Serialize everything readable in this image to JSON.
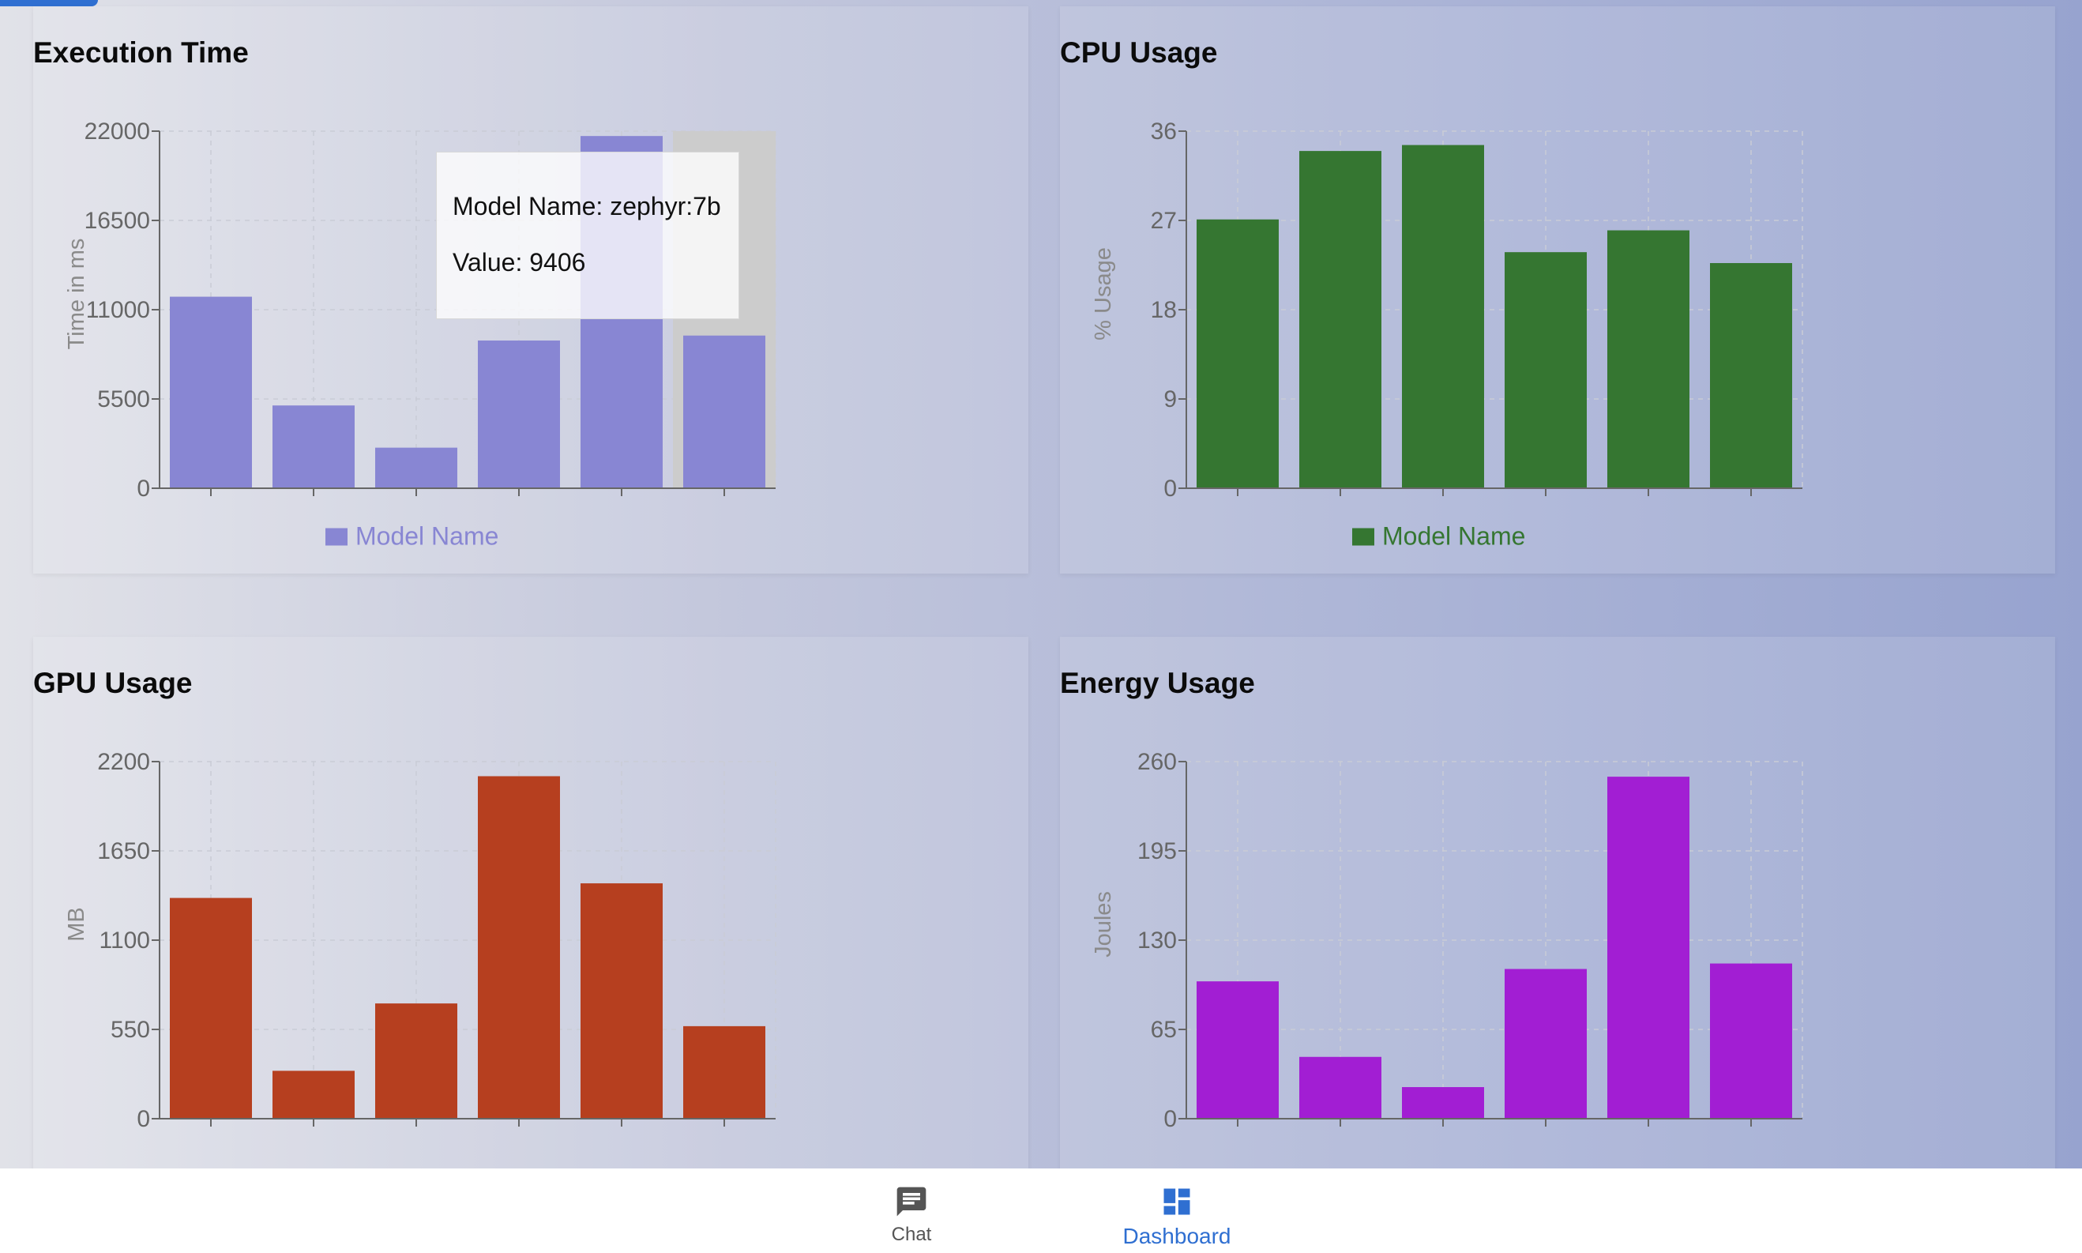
{
  "charts": {
    "execution": {
      "title": "Execution Time",
      "color": "#8886d3",
      "legend": "Model Name",
      "tooltip": {
        "model_line": "Model Name: zephyr:7b",
        "value_line": "Value: 9406"
      }
    },
    "cpu": {
      "title": "CPU Usage",
      "color": "#357631",
      "legend": "Model Name"
    },
    "gpu": {
      "title": "GPU Usage",
      "color": "#b63f1f"
    },
    "energy": {
      "title": "Energy Usage",
      "color": "#a21ed3"
    }
  },
  "chart_data": [
    {
      "type": "bar",
      "title": "Execution Time",
      "xlabel": "",
      "ylabel": "Time in ms",
      "ylim": [
        0,
        22000
      ],
      "yticks": [
        "0",
        "5500",
        "11000",
        "16500",
        "22000"
      ],
      "categories": [
        "",
        "",
        "",
        "",
        "",
        ""
      ],
      "values": [
        11800,
        5100,
        2500,
        9100,
        21700,
        9406
      ],
      "legend": "Model Name",
      "color": "#8886d3",
      "highlight_index": 5
    },
    {
      "type": "bar",
      "title": "CPU Usage",
      "xlabel": "",
      "ylabel": "% Usage",
      "ylim": [
        0,
        36
      ],
      "yticks": [
        "0",
        "9",
        "18",
        "27",
        "36"
      ],
      "categories": [
        "",
        "",
        "",
        "",
        "",
        ""
      ],
      "values": [
        27.1,
        34.0,
        34.6,
        23.8,
        26.0,
        22.7
      ],
      "legend": "Model Name",
      "color": "#357631"
    },
    {
      "type": "bar",
      "title": "GPU Usage",
      "xlabel": "",
      "ylabel": "MB",
      "ylim": [
        0,
        2200
      ],
      "yticks": [
        "0",
        "550",
        "1100",
        "1650",
        "2200"
      ],
      "categories": [
        "",
        "",
        "",
        "",
        "",
        ""
      ],
      "values": [
        1360,
        295,
        710,
        2110,
        1450,
        570
      ],
      "color": "#b63f1f"
    },
    {
      "type": "bar",
      "title": "Energy Usage",
      "xlabel": "",
      "ylabel": "Joules",
      "ylim": [
        0,
        260
      ],
      "yticks": [
        "0",
        "65",
        "130",
        "195",
        "260"
      ],
      "categories": [
        "",
        "",
        "",
        "",
        "",
        ""
      ],
      "values": [
        100,
        45,
        23,
        109,
        249,
        113
      ],
      "color": "#a21ed3"
    }
  ],
  "nav": {
    "chat": {
      "label": "Chat"
    },
    "dashboard": {
      "label": "Dashboard"
    }
  }
}
